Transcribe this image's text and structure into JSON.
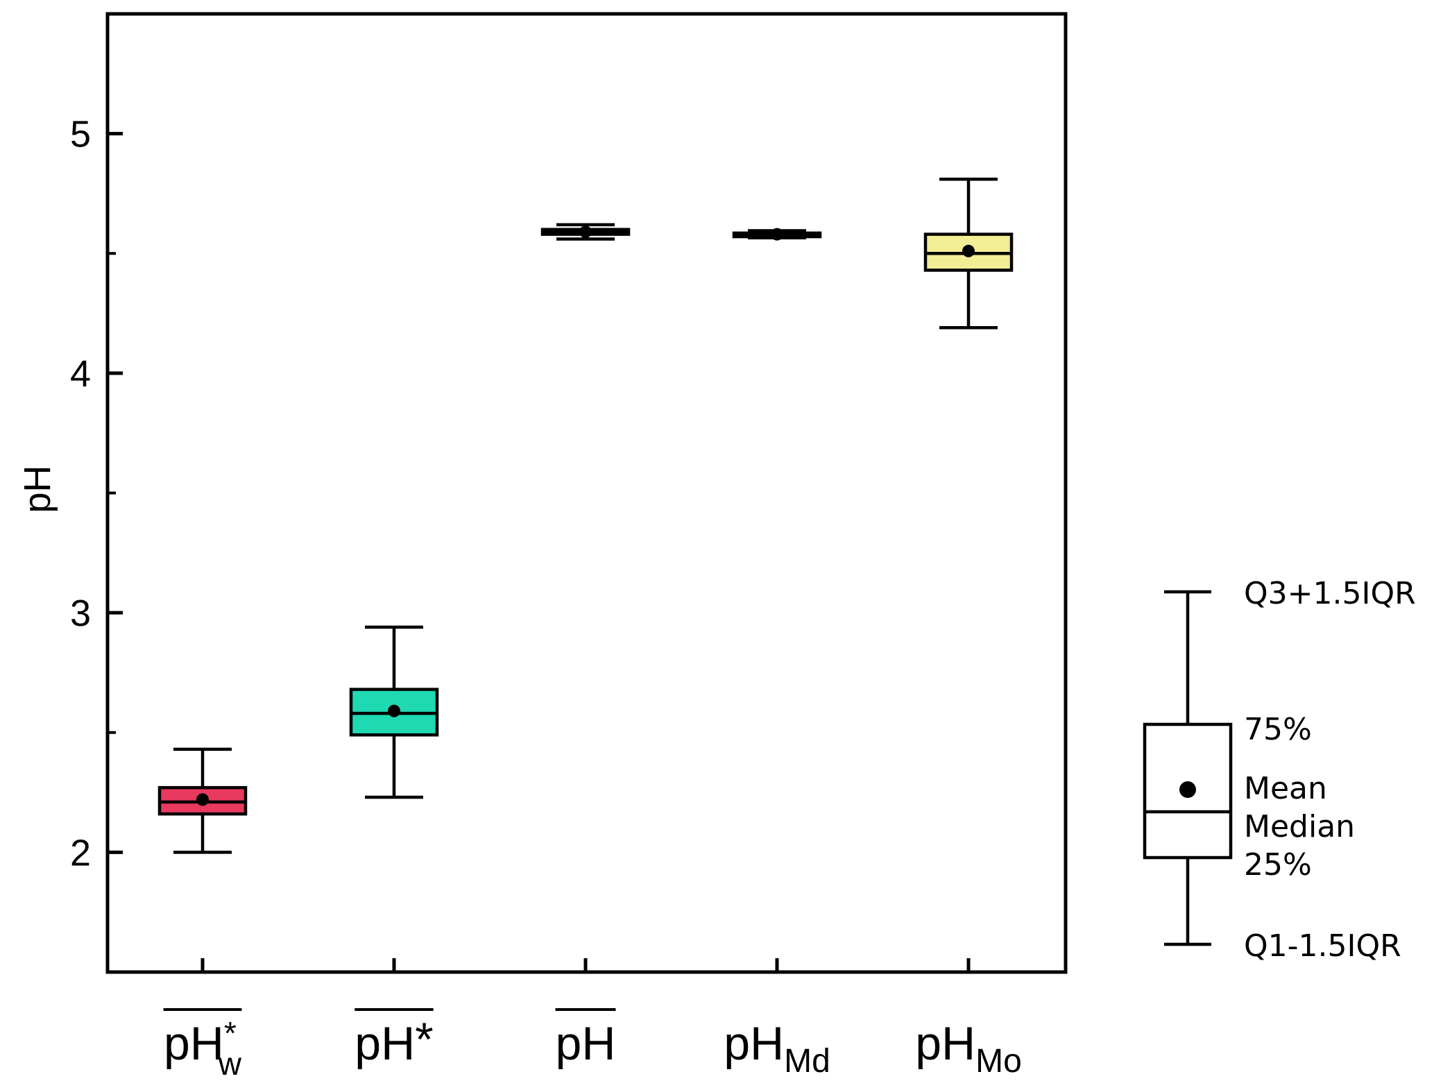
{
  "chart_data": {
    "type": "box",
    "ylabel": "pH",
    "ylim": [
      1.5,
      5.5
    ],
    "y_ticks_major": [
      2,
      3,
      4,
      5
    ],
    "y_tick_labels": [
      "2",
      "3",
      "4",
      "5"
    ],
    "y_ticks_minor": [
      2.5,
      3.5,
      4.5
    ],
    "grid": false,
    "categories": [
      {
        "base": "pH",
        "sub": "w",
        "sup": "*",
        "overline": true
      },
      {
        "base": "pH",
        "sub": "",
        "sup": "*",
        "overline": true
      },
      {
        "base": "pH",
        "sub": "",
        "sup": "",
        "overline": true
      },
      {
        "base": "pH",
        "sub": "Md",
        "sup": "",
        "overline": false
      },
      {
        "base": "pH",
        "sub": "Mo",
        "sup": "",
        "overline": false
      }
    ],
    "boxes": [
      {
        "whisker_low": 2.0,
        "q1": 2.16,
        "median": 2.21,
        "q3": 2.27,
        "whisker_high": 2.43,
        "mean": 2.22,
        "color": "#e8395f"
      },
      {
        "whisker_low": 2.23,
        "q1": 2.49,
        "median": 2.58,
        "q3": 2.68,
        "whisker_high": 2.94,
        "mean": 2.59,
        "color": "#1fd9b3"
      },
      {
        "whisker_low": 4.56,
        "q1": 4.58,
        "median": 4.59,
        "q3": 4.6,
        "whisker_high": 4.62,
        "mean": 4.59,
        "color": "#f3ee95"
      },
      {
        "whisker_low": 4.565,
        "q1": 4.57,
        "median": 4.58,
        "q3": 4.585,
        "whisker_high": 4.595,
        "mean": 4.58,
        "color": "#f3ee95"
      },
      {
        "whisker_low": 4.19,
        "q1": 4.43,
        "median": 4.5,
        "q3": 4.58,
        "whisker_high": 4.81,
        "mean": 4.51,
        "color": "#f3ee95"
      }
    ],
    "legend": {
      "position": "right",
      "labels": {
        "upper_whisker": "Q3+1.5IQR",
        "q3": "75%",
        "mean": "Mean",
        "median": "Median",
        "q1": "25%",
        "lower_whisker": "Q1-1.5IQR"
      }
    }
  }
}
